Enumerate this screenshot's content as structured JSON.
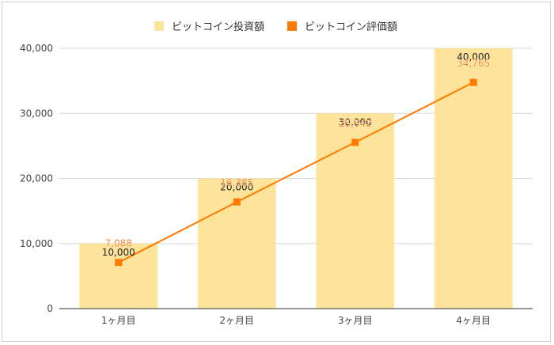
{
  "chart_data": {
    "type": "bar",
    "title": "",
    "xlabel": "",
    "ylabel": "",
    "ylim": [
      0,
      40000
    ],
    "yticks": [
      "0",
      "10,000",
      "20,000",
      "30,000",
      "40,000"
    ],
    "ytick_values": [
      0,
      10000,
      20000,
      30000,
      40000
    ],
    "grid": true,
    "legend_position": "top-center",
    "categories": [
      "1ヶ月目",
      "2ヶ月目",
      "3ヶ月目",
      "4ヶ月目"
    ],
    "series": [
      {
        "name": "ビットコイン投資額",
        "kind": "bar",
        "color": "#fde49a",
        "values": [
          10000,
          20000,
          30000,
          40000
        ],
        "labels": [
          "10,000",
          "20,000",
          "30,000",
          "40,000"
        ]
      },
      {
        "name": "ビットコイン評価額",
        "kind": "line",
        "color": "#ff7a00",
        "values": [
          7088,
          16385,
          25542,
          34765
        ],
        "labels": [
          "7,088",
          "16,385",
          "25,542",
          "34,765"
        ]
      }
    ]
  }
}
